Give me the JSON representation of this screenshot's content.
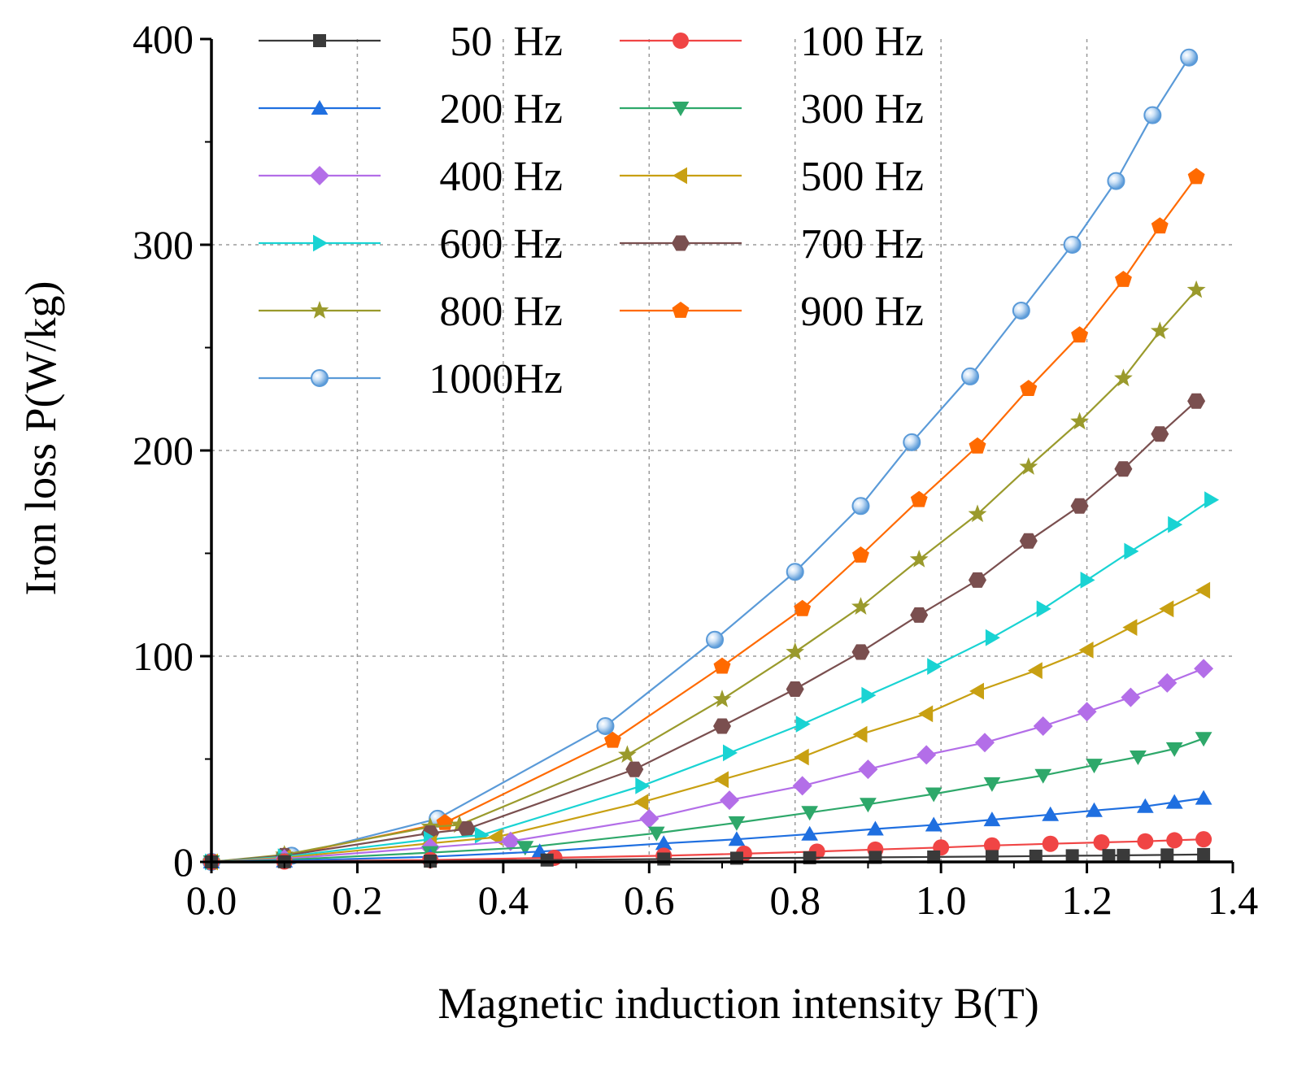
{
  "chart_data": {
    "type": "line",
    "title": "",
    "xlabel": "Magnetic induction intensity B(T)",
    "ylabel": "Iron loss P(W/kg)",
    "xlim": [
      0.0,
      1.4
    ],
    "ylim": [
      0,
      400
    ],
    "xticks": [
      "0.0",
      "0.2",
      "0.4",
      "0.6",
      "0.8",
      "1.0",
      "1.2",
      "1.4"
    ],
    "yticks": [
      "0",
      "100",
      "200",
      "300",
      "400"
    ],
    "grid": true,
    "legend_position": "top-left",
    "series": [
      {
        "name": "50  Hz",
        "color": "#3a3a3a",
        "marker": "square",
        "x": [
          0,
          0.1,
          0.3,
          0.46,
          0.62,
          0.72,
          0.82,
          0.91,
          0.99,
          1.07,
          1.13,
          1.18,
          1.23,
          1.25,
          1.31,
          1.36
        ],
        "y": [
          0,
          0.1,
          0.4,
          0.9,
          1.4,
          1.8,
          2.0,
          2.2,
          2.4,
          2.6,
          2.8,
          3.0,
          3.1,
          3.2,
          3.4,
          3.6
        ]
      },
      {
        "name": "100 Hz",
        "color": "#f04545",
        "marker": "circle",
        "x": [
          0,
          0.1,
          0.3,
          0.47,
          0.62,
          0.73,
          0.83,
          0.91,
          1.0,
          1.07,
          1.15,
          1.22,
          1.28,
          1.32,
          1.36
        ],
        "y": [
          0,
          0.2,
          0.9,
          2,
          3,
          4,
          5,
          6,
          7,
          8,
          8.8,
          9.5,
          10,
          10.5,
          11
        ]
      },
      {
        "name": "200 Hz",
        "color": "#1f6fe0",
        "marker": "triangle-up",
        "x": [
          0,
          0.1,
          0.3,
          0.45,
          0.62,
          0.72,
          0.82,
          0.91,
          0.99,
          1.07,
          1.15,
          1.21,
          1.28,
          1.32,
          1.36
        ],
        "y": [
          0,
          0.5,
          2.5,
          5,
          9,
          11,
          13.5,
          16,
          18,
          20.5,
          23,
          25,
          27,
          29,
          31
        ]
      },
      {
        "name": "300 Hz",
        "color": "#2ea86a",
        "marker": "triangle-down",
        "x": [
          0,
          0.1,
          0.3,
          0.43,
          0.61,
          0.72,
          0.82,
          0.9,
          0.99,
          1.07,
          1.14,
          1.21,
          1.27,
          1.32,
          1.36
        ],
        "y": [
          0,
          1,
          4.5,
          7,
          14,
          19,
          24,
          28,
          33,
          38,
          42,
          47,
          51,
          55,
          60
        ]
      },
      {
        "name": "400 Hz",
        "color": "#b36ee8",
        "marker": "diamond",
        "x": [
          0,
          0.1,
          0.3,
          0.41,
          0.6,
          0.71,
          0.81,
          0.9,
          0.98,
          1.06,
          1.14,
          1.2,
          1.26,
          1.31,
          1.36
        ],
        "y": [
          0,
          1.5,
          7,
          10,
          21,
          30,
          37,
          45,
          52,
          58,
          66,
          73,
          80,
          87,
          94
        ]
      },
      {
        "name": "500 Hz",
        "color": "#c8a012",
        "marker": "triangle-left",
        "x": [
          0,
          0.1,
          0.3,
          0.39,
          0.59,
          0.7,
          0.81,
          0.89,
          0.98,
          1.05,
          1.13,
          1.2,
          1.26,
          1.31,
          1.36
        ],
        "y": [
          0,
          2,
          9,
          12,
          29,
          40,
          51,
          62,
          72,
          83,
          93,
          103,
          114,
          123,
          132
        ]
      },
      {
        "name": "600 Hz",
        "color": "#19d3d3",
        "marker": "triangle-right",
        "x": [
          0,
          0.1,
          0.3,
          0.37,
          0.59,
          0.71,
          0.81,
          0.9,
          0.99,
          1.07,
          1.14,
          1.2,
          1.26,
          1.32,
          1.37
        ],
        "y": [
          0,
          2.5,
          11,
          13,
          37,
          53,
          67,
          81,
          95,
          109,
          123,
          137,
          151,
          164,
          176
        ]
      },
      {
        "name": "700 Hz",
        "color": "#7a4f4f",
        "marker": "hexagon",
        "x": [
          0,
          0.1,
          0.3,
          0.35,
          0.58,
          0.7,
          0.8,
          0.89,
          0.97,
          1.05,
          1.12,
          1.19,
          1.25,
          1.3,
          1.35
        ],
        "y": [
          0,
          3,
          14,
          16,
          45,
          66,
          84,
          102,
          120,
          137,
          156,
          173,
          191,
          208,
          224
        ]
      },
      {
        "name": "800 Hz",
        "color": "#9a9a2c",
        "marker": "star",
        "x": [
          0,
          0.1,
          0.3,
          0.34,
          0.57,
          0.7,
          0.8,
          0.89,
          0.97,
          1.05,
          1.12,
          1.19,
          1.25,
          1.3,
          1.35
        ],
        "y": [
          0,
          3.5,
          17,
          18,
          52,
          79,
          102,
          124,
          147,
          169,
          192,
          214,
          235,
          258,
          278
        ]
      },
      {
        "name": "900 Hz",
        "color": "#ff6a00",
        "marker": "pentagon",
        "x": [
          0,
          0.1,
          0.32,
          0.55,
          0.7,
          0.81,
          0.89,
          0.97,
          1.05,
          1.12,
          1.19,
          1.25,
          1.3,
          1.35
        ],
        "y": [
          0,
          3,
          19,
          59,
          95,
          123,
          149,
          176,
          202,
          230,
          256,
          283,
          309,
          333
        ]
      },
      {
        "name": "1000Hz",
        "color": "#5a9ad8",
        "marker": "sphere",
        "x": [
          0,
          0.11,
          0.31,
          0.54,
          0.69,
          0.8,
          0.89,
          0.96,
          1.04,
          1.11,
          1.18,
          1.24,
          1.29,
          1.34
        ],
        "y": [
          0,
          3,
          21,
          66,
          108,
          141,
          173,
          204,
          236,
          268,
          300,
          331,
          363,
          391
        ]
      }
    ]
  }
}
